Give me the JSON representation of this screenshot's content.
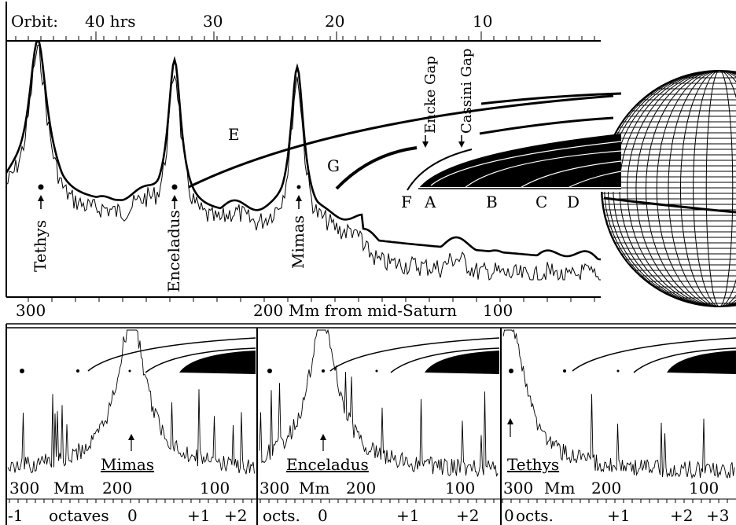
{
  "top": {
    "orbit_label": "Orbit:",
    "orbit_ticks": [
      "40 hrs",
      "30",
      "20",
      "10"
    ],
    "distance_ticks": [
      "300",
      "200",
      "100"
    ],
    "distance_label": "Mm from mid-Saturn",
    "moons": [
      "Tethys",
      "Enceladus",
      "Mimas"
    ],
    "ring_labels": [
      "E",
      "G",
      "F",
      "A",
      "B",
      "C",
      "D"
    ],
    "gap_labels": [
      "Encke Gap",
      "Cassini Gap"
    ]
  },
  "panels": [
    {
      "moon": "Mimas",
      "dist_ticks": [
        "300",
        "Mm",
        "200",
        "100"
      ],
      "oct_ticks": [
        "-1",
        "octaves",
        "0",
        "+1",
        "+2"
      ]
    },
    {
      "moon": "Enceladus",
      "dist_ticks": [
        "300",
        "Mm",
        "200",
        "100"
      ],
      "oct_ticks": [
        "octs.",
        "0",
        "+1",
        "+2"
      ]
    },
    {
      "moon": "Tethys",
      "dist_ticks": [
        "300",
        "Mm",
        "200",
        "100"
      ],
      "oct_ticks": [
        "0",
        "octs.",
        "+1",
        "+2",
        "+3"
      ]
    }
  ]
}
